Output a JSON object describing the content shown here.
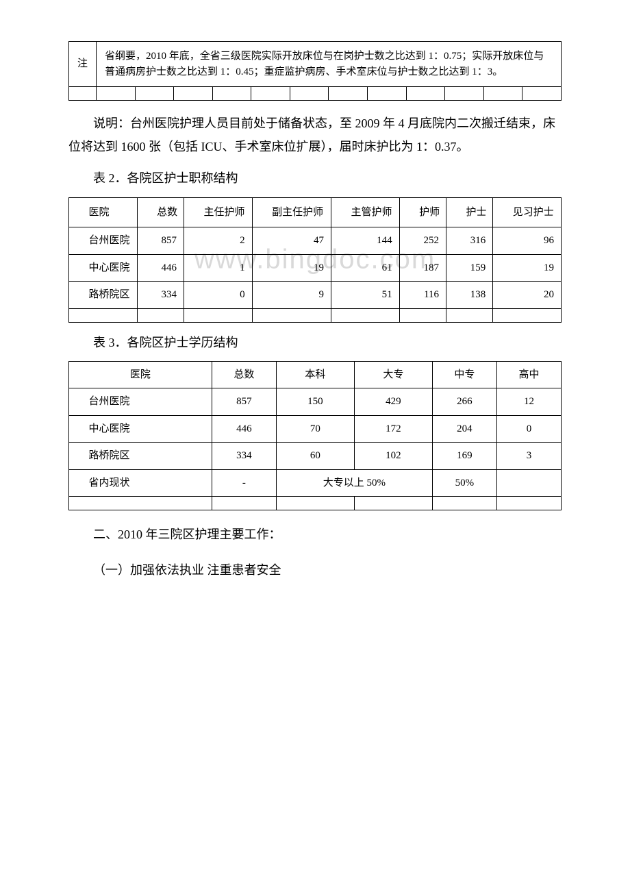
{
  "table1": {
    "note_label": "注",
    "note_text": "省纲要，2010 年底，全省三级医院实际开放床位与在岗护士数之比达到 1：0.75；实际开放床位与普通病房护士数之比达到 1：0.45；重症监护病房、手术室床位与护士数之比达到 1：3。",
    "empty_cols": 13
  },
  "para1": "说明：台州医院护理人员目前处于储备状态，至 2009 年 4 月底院内二次搬迁结束，床位将达到 1600 张（包括 ICU、手术室床位扩展），届时床护比为 1：0.37。",
  "caption2": "表 2．各院区护士职称结构",
  "table2": {
    "headers": [
      "医院",
      "总数",
      "主任护师",
      "副主任护师",
      "主管护师",
      "护师",
      "护士",
      "见习护士"
    ],
    "rows": [
      {
        "hospital": "台州医院",
        "cells": [
          "857",
          "2",
          "47",
          "144",
          "252",
          "316",
          "96"
        ]
      },
      {
        "hospital": "中心医院",
        "cells": [
          "446",
          "1",
          "19",
          "61",
          "187",
          "159",
          "19"
        ]
      },
      {
        "hospital": "路桥院区",
        "cells": [
          "334",
          "0",
          "9",
          "51",
          "116",
          "138",
          "20"
        ]
      }
    ],
    "empty_cols": 8
  },
  "caption3": "表 3．各院区护士学历结构",
  "table3": {
    "headers": [
      "医院",
      "总数",
      "本科",
      "大专",
      "中专",
      "高中"
    ],
    "rows": [
      {
        "hospital": "台州医院",
        "cells": [
          "857",
          "150",
          "429",
          "266",
          "12"
        ]
      },
      {
        "hospital": "中心医院",
        "cells": [
          "446",
          "70",
          "172",
          "204",
          "0"
        ]
      },
      {
        "hospital": "路桥院区",
        "cells": [
          "334",
          "60",
          "102",
          "169",
          "3"
        ]
      }
    ],
    "status_row": {
      "label": "省内现状",
      "total": "-",
      "merge1": "大专以上 50%",
      "merge2": "50%",
      "trailing_empty": true
    },
    "empty_cols": 6
  },
  "section1": "二、2010 年三院区护理主要工作：",
  "section2": "（一）加强依法执业 注重患者安全",
  "watermark": "www.bingdoc.com",
  "colors": {
    "text": "#000000",
    "border": "#000000",
    "background": "#ffffff",
    "watermark": "#d9d9d9"
  },
  "fonts": {
    "body_family": "SimSun",
    "body_size_pt": 13,
    "table_size_pt": 11
  }
}
